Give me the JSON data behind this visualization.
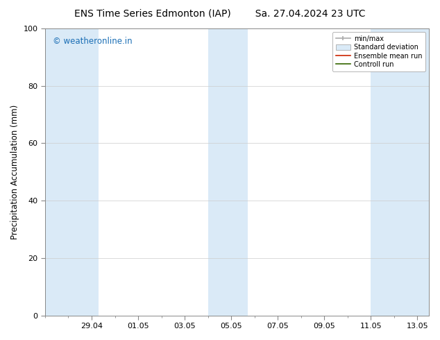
{
  "title_left": "ENS Time Series Edmonton (IAP)",
  "title_right": "Sa. 27.04.2024 23 UTC",
  "ylabel": "Precipitation Accumulation (mm)",
  "ylim": [
    0,
    100
  ],
  "yticks": [
    0,
    20,
    40,
    60,
    80,
    100
  ],
  "background_color": "#ffffff",
  "plot_bg_color": "#ffffff",
  "watermark_text": "© weatheronline.in",
  "watermark_color": "#1a6eb5",
  "shade_color": "#daeaf7",
  "x_tick_labels": [
    "29.04",
    "01.05",
    "03.05",
    "05.05",
    "07.05",
    "09.05",
    "11.05",
    "13.05"
  ],
  "legend_labels": [
    "min/max",
    "Standard deviation",
    "Ensemble mean run",
    "Controll run"
  ],
  "legend_colors_line": [
    "#aaaaaa",
    "#bbccdd",
    "#cc0000",
    "#006600"
  ],
  "title_fontsize": 10,
  "tick_fontsize": 8,
  "ylabel_fontsize": 8.5,
  "watermark_fontsize": 8.5
}
